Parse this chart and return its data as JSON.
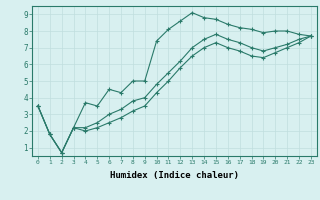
{
  "xlabel": "Humidex (Indice chaleur)",
  "bg_color": "#d8f0f0",
  "line_color": "#2a7a6a",
  "grid_color": "#c0dede",
  "spine_color": "#2a7a6a",
  "xlim": [
    -0.5,
    23.5
  ],
  "ylim": [
    0.5,
    9.5
  ],
  "xticks": [
    0,
    1,
    2,
    3,
    4,
    5,
    6,
    7,
    8,
    9,
    10,
    11,
    12,
    13,
    14,
    15,
    16,
    17,
    18,
    19,
    20,
    21,
    22,
    23
  ],
  "yticks": [
    1,
    2,
    3,
    4,
    5,
    6,
    7,
    8,
    9
  ],
  "curve1_x": [
    0,
    1,
    2,
    3,
    4,
    5,
    6,
    7,
    8,
    9,
    10,
    11,
    12,
    13,
    14,
    15,
    16,
    17,
    18,
    19,
    20,
    21,
    22,
    23
  ],
  "curve1_y": [
    3.5,
    1.8,
    0.7,
    2.2,
    3.7,
    3.5,
    4.5,
    4.3,
    5.0,
    5.0,
    7.4,
    8.1,
    8.6,
    9.1,
    8.8,
    8.7,
    8.4,
    8.2,
    8.1,
    7.9,
    8.0,
    8.0,
    7.8,
    7.7
  ],
  "curve2_x": [
    0,
    1,
    2,
    3,
    4,
    5,
    6,
    7,
    8,
    9,
    10,
    11,
    12,
    13,
    14,
    15,
    16,
    17,
    18,
    19,
    20,
    21,
    22,
    23
  ],
  "curve2_y": [
    3.5,
    1.8,
    0.7,
    2.2,
    2.2,
    2.5,
    3.0,
    3.3,
    3.8,
    4.0,
    4.8,
    5.5,
    6.2,
    7.0,
    7.5,
    7.8,
    7.5,
    7.3,
    7.0,
    6.8,
    7.0,
    7.2,
    7.5,
    7.7
  ],
  "curve3_x": [
    0,
    1,
    2,
    3,
    4,
    5,
    6,
    7,
    8,
    9,
    10,
    11,
    12,
    13,
    14,
    15,
    16,
    17,
    18,
    19,
    20,
    21,
    22,
    23
  ],
  "curve3_y": [
    3.5,
    1.8,
    0.7,
    2.2,
    2.0,
    2.2,
    2.5,
    2.8,
    3.2,
    3.5,
    4.3,
    5.0,
    5.8,
    6.5,
    7.0,
    7.3,
    7.0,
    6.8,
    6.5,
    6.4,
    6.7,
    7.0,
    7.3,
    7.7
  ]
}
